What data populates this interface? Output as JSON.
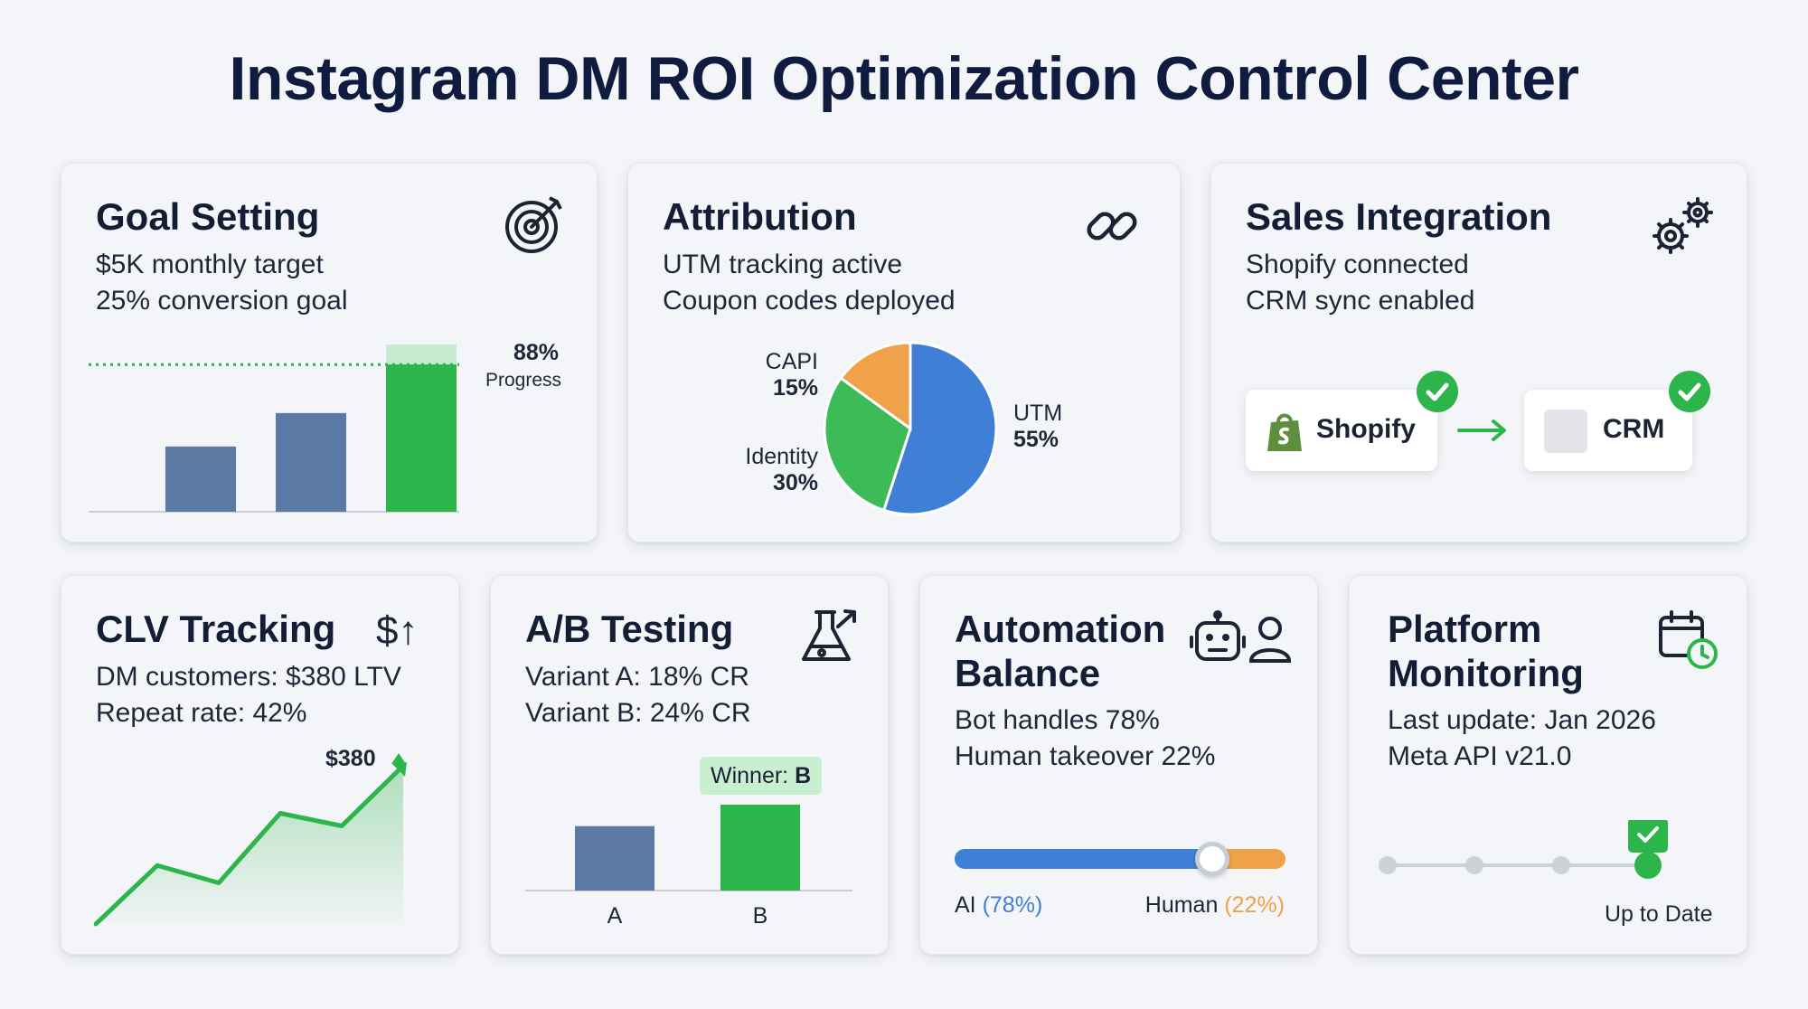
{
  "title": "Instagram DM ROI Optimization Control Center",
  "goal": {
    "title": "Goal Setting",
    "lines": [
      "$5K monthly target",
      "25% conversion goal"
    ],
    "progress_pct": "88%",
    "progress_label": "Progress",
    "progress_value": 0.88,
    "bars": [
      0.39,
      0.59,
      1.0
    ],
    "icon": "target-icon"
  },
  "attribution": {
    "title": "Attribution",
    "lines": [
      "UTM tracking active",
      "Coupon codes deployed"
    ],
    "icon": "link-icon",
    "slices": [
      {
        "name": "UTM",
        "pct_label": "55%",
        "value": 55,
        "color": "#3f7fd6"
      },
      {
        "name": "Identity",
        "pct_label": "30%",
        "value": 30,
        "color": "#3dbb56"
      },
      {
        "name": "CAPI",
        "pct_label": "15%",
        "value": 15,
        "color": "#f0a24a"
      }
    ]
  },
  "sales": {
    "title": "Sales Integration",
    "lines": [
      "Shopify connected",
      "CRM sync enabled"
    ],
    "icon": "gears-icon",
    "shopify_label": "Shopify",
    "crm_label": "CRM"
  },
  "clv": {
    "title": "CLV Tracking",
    "icon_text": "$↑",
    "lines": [
      "DM customers: $380 LTV",
      "Repeat rate: 42%"
    ],
    "peak_label": "$380",
    "trend": [
      0.0,
      0.37,
      0.26,
      0.7,
      0.62,
      1.0
    ]
  },
  "ab": {
    "title": "A/B Testing",
    "icon": "flask-icon",
    "lines": [
      "Variant A: 18% CR",
      "Variant B: 24% CR"
    ],
    "winner_prefix": "Winner: ",
    "winner_value": "B",
    "categories": [
      "A",
      "B"
    ],
    "values": [
      18,
      24
    ]
  },
  "automation": {
    "title_line1": "Automation",
    "title_line2": "Balance",
    "icons": [
      "robot-icon",
      "person-icon"
    ],
    "lines": [
      "Bot handles 78%",
      "Human takeover 22%"
    ],
    "ai_label": "AI",
    "ai_pct": "(78%)",
    "human_label": "Human",
    "human_pct": "(22%)",
    "ai_share": 0.78,
    "colors": {
      "ai": "#3f7fd6",
      "human": "#f0a24a"
    }
  },
  "platform": {
    "title_line1": "Platform",
    "title_line2": "Monitoring",
    "icon": "calendar-clock-icon",
    "lines": [
      "Last update: Jan 2026",
      "Meta API v21.0"
    ],
    "status": "Up to Date",
    "steps": 4,
    "current_step": 4
  },
  "colors": {
    "green": "#2cb54a",
    "slate": "#5b7aa5",
    "navy": "#0f1c3f"
  }
}
